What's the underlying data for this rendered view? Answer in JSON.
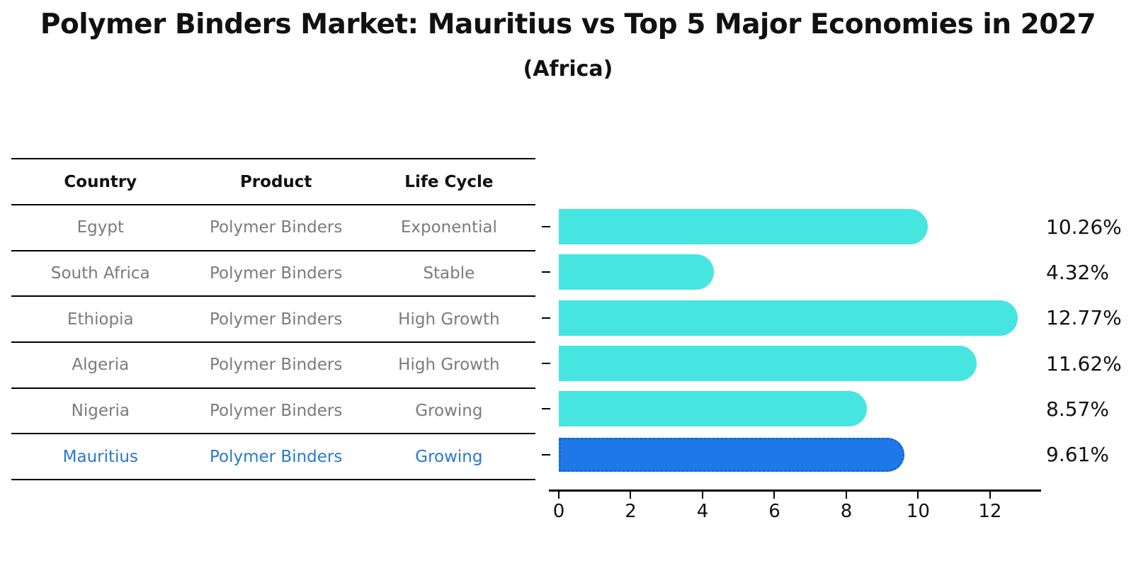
{
  "title": "Polymer Binders Market: Mauritius vs Top 5 Major Economies in 2027",
  "subtitle": "(Africa)",
  "table": {
    "headers": [
      "Country",
      "Product",
      "Life Cycle"
    ],
    "rows": [
      {
        "country": "Egypt",
        "product": "Polymer Binders",
        "life_cycle": "Exponential",
        "highlight": false
      },
      {
        "country": "South Africa",
        "product": "Polymer Binders",
        "life_cycle": "Stable",
        "highlight": false
      },
      {
        "country": "Ethiopia",
        "product": "Polymer Binders",
        "life_cycle": "High Growth",
        "highlight": false
      },
      {
        "country": "Algeria",
        "product": "Polymer Binders",
        "life_cycle": "High Growth",
        "highlight": false
      },
      {
        "country": "Nigeria",
        "product": "Polymer Binders",
        "life_cycle": "Growing",
        "highlight": false
      },
      {
        "country": "Mauritius",
        "product": "Polymer Binders",
        "life_cycle": "Growing",
        "highlight": true
      }
    ]
  },
  "chart_data": {
    "type": "bar",
    "orientation": "horizontal",
    "title": "Polymer Binders Market: Mauritius vs Top 5 Major Economies in 2027",
    "subtitle": "(Africa)",
    "categories": [
      "Egypt",
      "South Africa",
      "Ethiopia",
      "Algeria",
      "Nigeria",
      "Mauritius"
    ],
    "values": [
      10.26,
      4.32,
      12.77,
      11.62,
      8.57,
      9.61
    ],
    "value_labels": [
      "10.26%",
      "4.32%",
      "12.77%",
      "11.62%",
      "8.57%",
      "9.61%"
    ],
    "xlabel": "",
    "ylabel": "",
    "xticks": [
      0,
      2,
      4,
      6,
      8,
      10,
      12
    ],
    "xlim": [
      0,
      13.42
    ],
    "grid": false,
    "legend": "none",
    "bar_color": "#46e5e0",
    "highlight_index": 5,
    "highlight_bar_color": "#1e78e8",
    "highlight_border_style": "dotted",
    "highlight_text_color": "#2979cc"
  }
}
